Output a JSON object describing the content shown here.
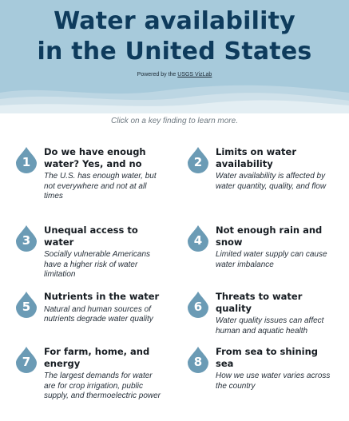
{
  "header": {
    "title_line1": "Water availability",
    "title_line2": "in the United States",
    "powered_prefix": "Powered by the ",
    "powered_link": "USGS VizLab",
    "background": "#a7cadb",
    "title_color": "#0e3b5c"
  },
  "instruction": "Click on a key finding to learn more.",
  "drop_color": "#6b9bb5",
  "findings": [
    {
      "number": "1",
      "title": "Do we have enough water? Yes, and no",
      "description": "The U.S. has enough water, but not everywhere and not at all times"
    },
    {
      "number": "2",
      "title": "Limits on water availability",
      "description": "Water availability is affected by water quantity, quality, and flow"
    },
    {
      "number": "3",
      "title": "Unequal access to water",
      "description": "Socially vulnerable Americans have a higher risk of water limitation"
    },
    {
      "number": "4",
      "title": "Not enough rain and snow",
      "description": "Limited water supply can cause water imbalance"
    },
    {
      "number": "5",
      "title": "Nutrients in the water",
      "description": "Natural and human sources of nutrients degrade water quality"
    },
    {
      "number": "6",
      "title": "Threats to water quality",
      "description": "Water quality issues can affect human and aquatic health"
    },
    {
      "number": "7",
      "title": "For farm, home, and energy",
      "description": "The largest demands for water are for crop irrigation, public supply, and thermoelectric power"
    },
    {
      "number": "8",
      "title": "From sea to shining sea",
      "description": "How we use water varies across the country"
    }
  ]
}
